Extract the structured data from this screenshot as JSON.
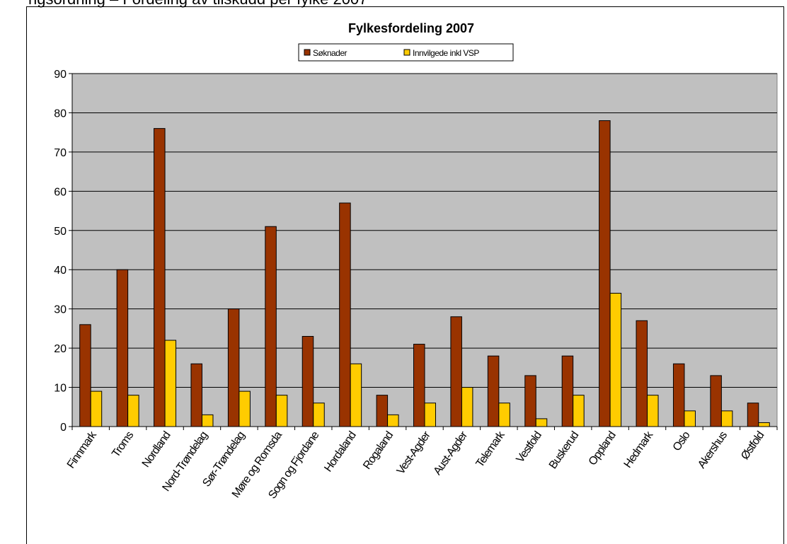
{
  "page": {
    "top_cut_text": "ngsordning – Fordeling av tilskudd per fylke 2007"
  },
  "chart_data": {
    "type": "bar",
    "title": "Fylkesfordeling 2007",
    "xlabel": "",
    "ylabel": "",
    "ylim": [
      0,
      90
    ],
    "yticks": [
      0,
      10,
      20,
      30,
      40,
      50,
      60,
      70,
      80,
      90
    ],
    "grid": true,
    "legend_position": "top",
    "plot_background": "#C0C0C0",
    "categories": [
      "Finnmark",
      "Troms",
      "Nordland",
      "Nord-Trøndelag",
      "Sør-Trøndelag",
      "Møre og Romsdal",
      "Sogn og Fjordane",
      "Hordaland",
      "Rogaland",
      "Vest-Agder",
      "Aust-Agder",
      "Telemark",
      "Vestfold",
      "Buskerud",
      "Oppland",
      "Hedmark",
      "Oslo",
      "Akershus",
      "Østfold"
    ],
    "category_labels": [
      "Finnmark",
      "Troms",
      "Nordland",
      "Nord-Trøndelag",
      "Sør-Trøndelag",
      "Møre og Romsda",
      "Sogn og Fjordane",
      "Hordaland",
      "Rogaland",
      "Vest-Agder",
      "Aust-Agder",
      "Telemark",
      "Vestfold",
      "Buskerud",
      "Oppland",
      "Hedmark",
      "Oslo",
      "Akershus",
      "Østfold"
    ],
    "series": [
      {
        "name": "Søknader",
        "color": "#993300",
        "values": [
          26,
          40,
          76,
          16,
          30,
          51,
          23,
          57,
          8,
          21,
          28,
          18,
          13,
          18,
          78,
          27,
          16,
          13,
          6
        ]
      },
      {
        "name": "Innvilgede inkl VSP",
        "color": "#FFCC00",
        "values": [
          9,
          8,
          22,
          3,
          9,
          8,
          6,
          16,
          3,
          6,
          10,
          6,
          2,
          8,
          34,
          8,
          4,
          4,
          1
        ]
      }
    ]
  }
}
